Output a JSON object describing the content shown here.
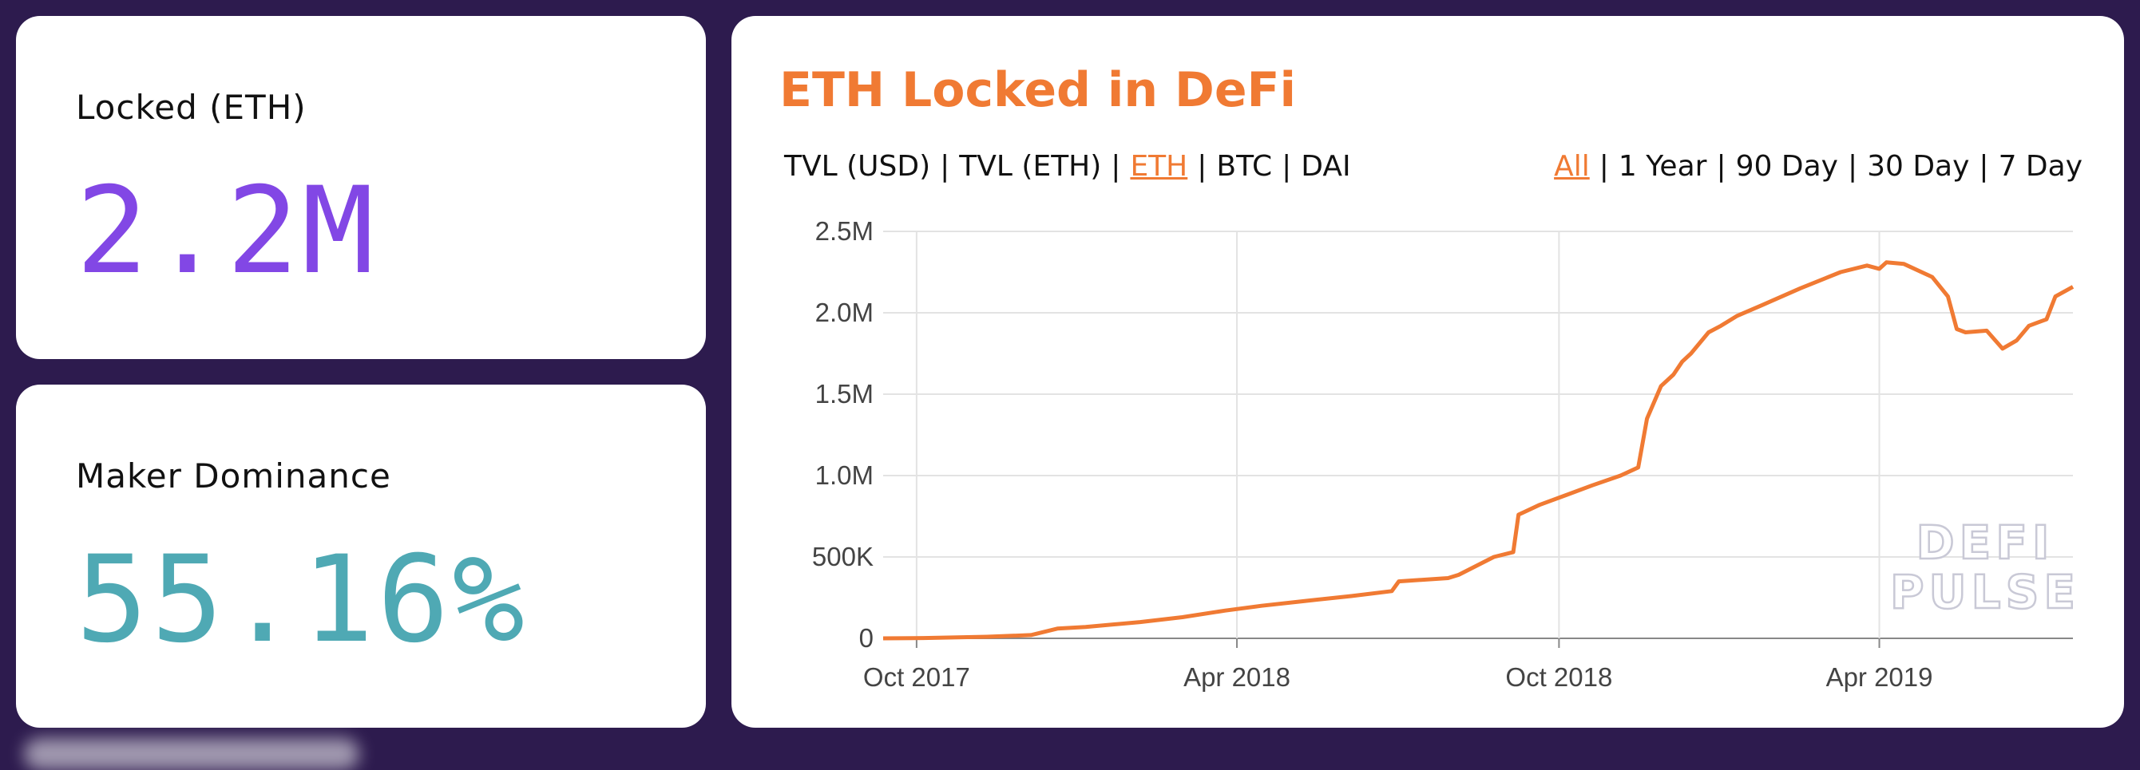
{
  "stats": {
    "locked": {
      "label": "Locked (ETH)",
      "value": "2.2M"
    },
    "maker": {
      "label": "Maker Dominance",
      "value": "55.16%"
    }
  },
  "chart": {
    "title": "ETH Locked in DeFi",
    "unit_options": [
      "TVL (USD)",
      "TVL (ETH)",
      "ETH",
      "BTC",
      "DAI"
    ],
    "unit_active": "ETH",
    "range_options": [
      "All",
      "1 Year",
      "90 Day",
      "30 Day",
      "7 Day"
    ],
    "range_active": "All",
    "watermark": [
      "DEFI",
      "PULSE"
    ],
    "line_color": "#f07a33"
  },
  "chart_data": {
    "type": "line",
    "title": "ETH Locked in DeFi",
    "xlabel": "",
    "ylabel": "",
    "ylim": [
      0,
      2500000
    ],
    "yticks": [
      0,
      500000,
      1000000,
      1500000,
      2000000,
      2500000
    ],
    "ytick_labels": [
      "0",
      "500K",
      "1.0M",
      "1.5M",
      "2.0M",
      "2.5M"
    ],
    "xlim": [
      "2017-09-12",
      "2019-07-20"
    ],
    "xticks": [
      "2017-10-01",
      "2018-04-01",
      "2018-10-01",
      "2019-04-01"
    ],
    "xtick_labels": [
      "Oct 2017",
      "Apr 2018",
      "Oct 2018",
      "Apr 2019"
    ],
    "grid": true,
    "legend": "none",
    "series": [
      {
        "x": [
          "2017-09-12",
          "2017-10-05",
          "2017-11-10",
          "2017-12-05",
          "2017-12-20",
          "2018-01-05",
          "2018-02-05",
          "2018-03-01",
          "2018-03-25",
          "2018-04-15",
          "2018-05-10",
          "2018-06-05",
          "2018-06-28",
          "2018-07-02",
          "2018-07-30",
          "2018-08-05",
          "2018-08-25",
          "2018-09-05",
          "2018-09-08",
          "2018-09-20",
          "2018-10-05",
          "2018-10-20",
          "2018-11-05",
          "2018-11-15",
          "2018-11-20",
          "2018-11-28",
          "2018-12-05",
          "2018-12-10",
          "2018-12-15",
          "2018-12-25",
          "2019-01-01",
          "2019-01-10",
          "2019-01-25",
          "2019-02-15",
          "2019-03-10",
          "2019-03-25",
          "2019-04-01",
          "2019-04-05",
          "2019-04-15",
          "2019-05-01",
          "2019-05-10",
          "2019-05-15",
          "2019-05-20",
          "2019-06-01",
          "2019-06-10",
          "2019-06-18",
          "2019-06-25",
          "2019-06-30",
          "2019-07-05",
          "2019-07-10",
          "2019-07-20"
        ],
        "y": [
          0,
          2000,
          10000,
          20000,
          60000,
          70000,
          100000,
          130000,
          170000,
          200000,
          230000,
          260000,
          290000,
          350000,
          370000,
          390000,
          500000,
          530000,
          760000,
          820000,
          880000,
          940000,
          1000000,
          1050000,
          1350000,
          1550000,
          1620000,
          1700000,
          1750000,
          1880000,
          1920000,
          1980000,
          2050000,
          2150000,
          2250000,
          2290000,
          2270000,
          2310000,
          2300000,
          2220000,
          2100000,
          1900000,
          1880000,
          1890000,
          1780000,
          1830000,
          1920000,
          1940000,
          1960000,
          2100000,
          2160000
        ]
      }
    ]
  }
}
